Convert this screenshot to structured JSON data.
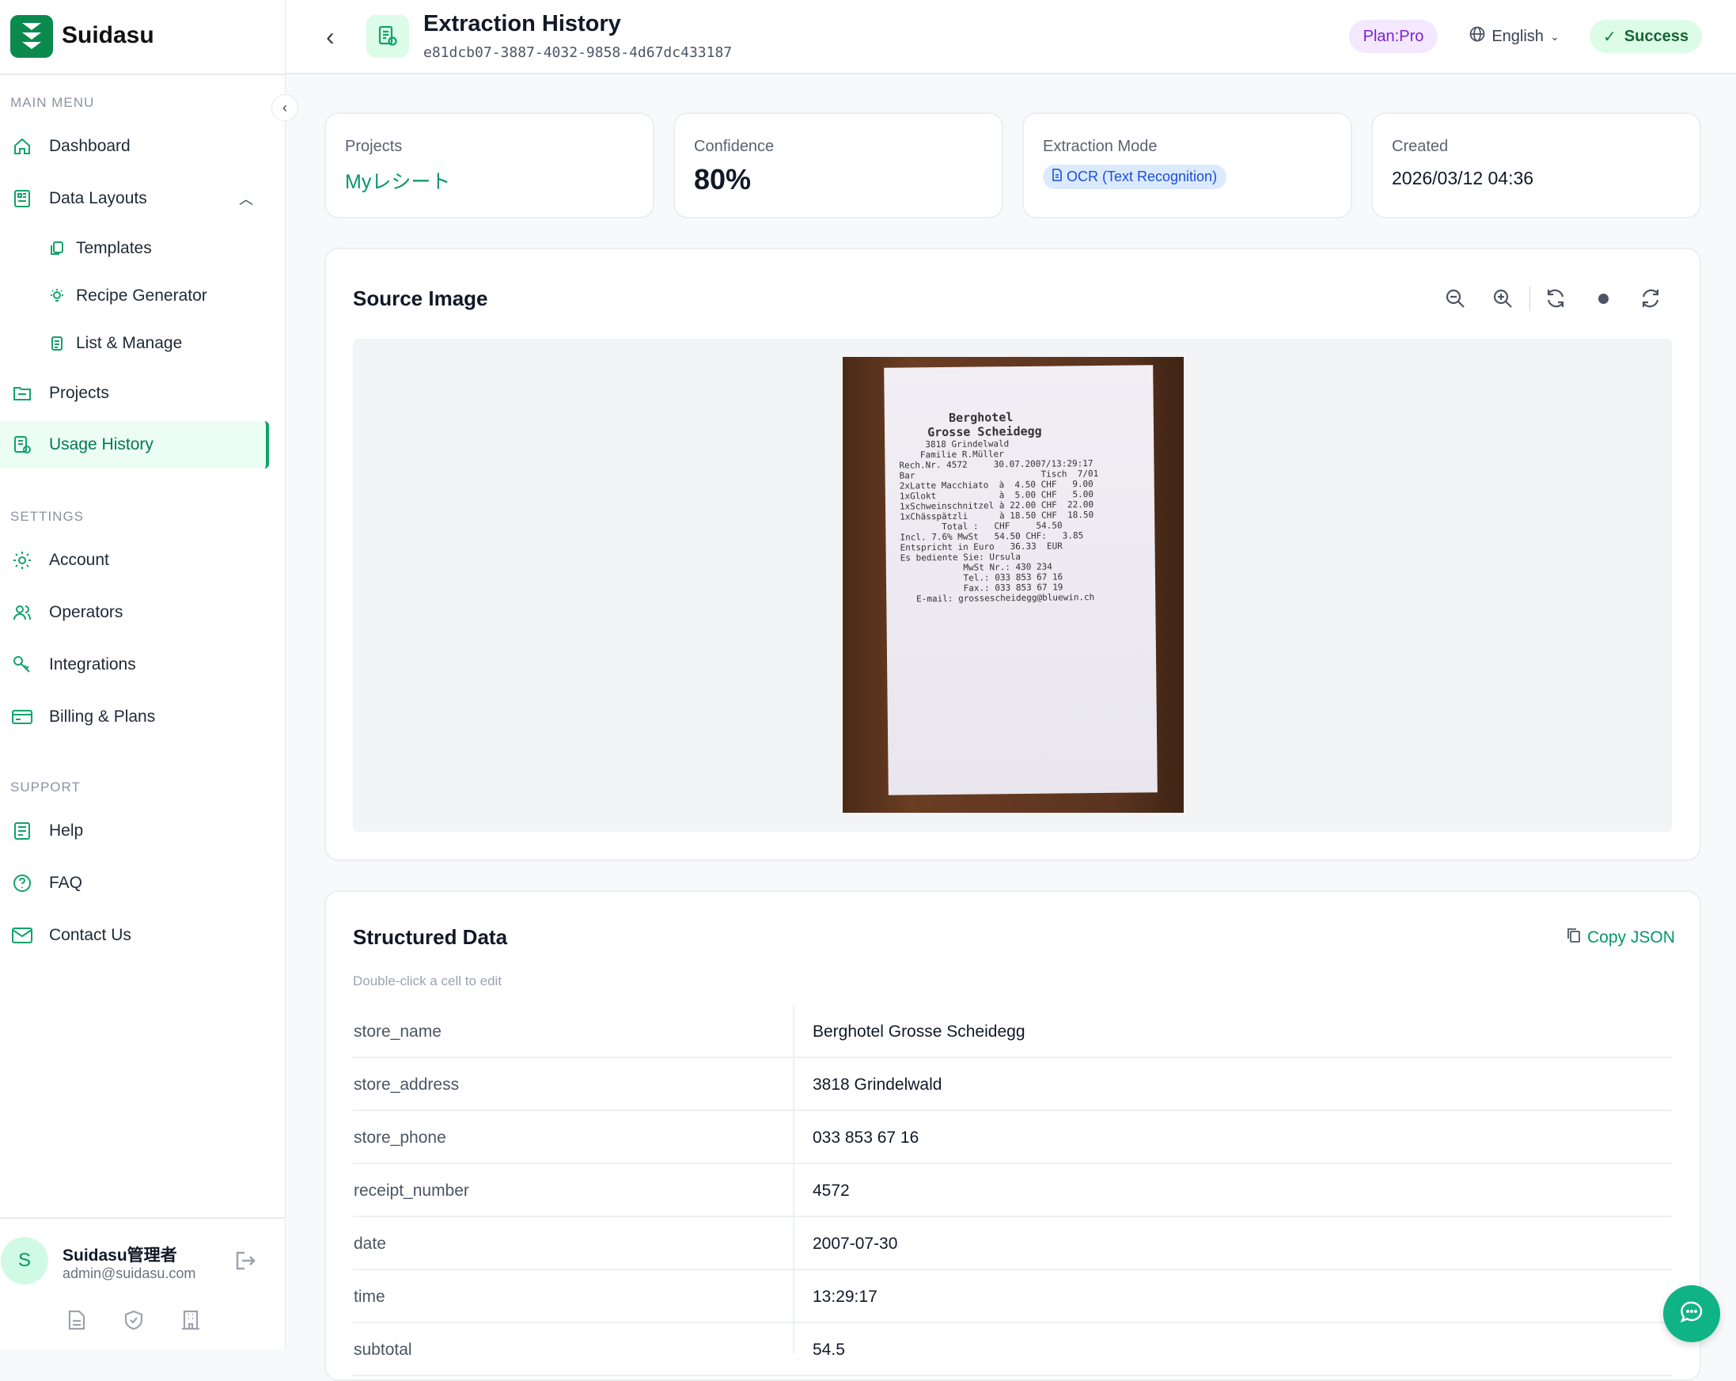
{
  "brand": {
    "name": "Suidasu",
    "color": "#0b8a4e"
  },
  "sidebar": {
    "main_menu": "MAIN MENU",
    "items": [
      {
        "label": "Dashboard",
        "icon": "home-icon"
      },
      {
        "label": "Data Layouts",
        "icon": "layout-icon",
        "expanded": true
      },
      {
        "label": "Templates",
        "icon": "copy-icon"
      },
      {
        "label": "Recipe Generator",
        "icon": "bulb-icon"
      },
      {
        "label": "List & Manage",
        "icon": "document-list-icon"
      },
      {
        "label": "Projects",
        "icon": "folder-icon"
      },
      {
        "label": "Usage History",
        "icon": "history-doc-icon",
        "active": true
      }
    ],
    "settings": "SETTINGS",
    "settings_items": [
      {
        "label": "Account",
        "icon": "gear-icon"
      },
      {
        "label": "Operators",
        "icon": "users-icon"
      },
      {
        "label": "Integrations",
        "icon": "key-icon"
      },
      {
        "label": "Billing & Plans",
        "icon": "credit-card-icon"
      }
    ],
    "support": "SUPPORT",
    "support_items": [
      {
        "label": "Help",
        "icon": "book-icon"
      },
      {
        "label": "FAQ",
        "icon": "question-icon"
      },
      {
        "label": "Contact Us",
        "icon": "mail-icon"
      }
    ],
    "user": {
      "initial": "S",
      "name": "Suidasu管理者",
      "email": "admin@suidasu.com"
    }
  },
  "header": {
    "title": "Extraction History",
    "id": "e81dcb07-3887-4032-9858-4d67dc433187",
    "plan": "Plan:Pro",
    "language": "English",
    "status": "Success"
  },
  "cards": {
    "projects": {
      "label": "Projects",
      "value": "Myレシート"
    },
    "confidence": {
      "label": "Confidence",
      "value": "80%"
    },
    "mode": {
      "label": "Extraction Mode",
      "value": "OCR (Text Recognition)"
    },
    "created": {
      "label": "Created",
      "value": "2026/03/12 04:36"
    }
  },
  "source": {
    "title": "Source Image",
    "receipt_lines": [
      "       Berghotel",
      "    Grosse Scheidegg",
      "     3818 Grindelwald",
      "    Familie R.Müller",
      "",
      "Rech.Nr. 4572     30.07.2007/13:29:17",
      "Bar                        Tisch  7/01",
      "",
      "2xLatte Macchiato  à  4.50 CHF   9.00",
      "1xGlokt            à  5.00 CHF   5.00",
      "1xSchweinschnitzel à 22.00 CHF  22.00",
      "1xChässpätzli      à 18.50 CHF  18.50",
      "",
      "        Total :   CHF     54.50",
      "",
      "Incl. 7.6% MwSt   54.50 CHF:   3.85",
      "",
      "Entspricht in Euro   36.33  EUR",
      "Es bediente Sie: Ursula",
      "",
      "            MwSt Nr.: 430 234",
      "            Tel.: 033 853 67 16",
      "            Fax.: 033 853 67 19",
      "   E-mail: grossescheidegg@bluewin.ch"
    ]
  },
  "structured": {
    "title": "Structured Data",
    "copy_label": "Copy JSON",
    "hint": "Double-click a cell to edit",
    "rows": [
      {
        "key": "store_name",
        "value": "Berghotel Grosse Scheidegg"
      },
      {
        "key": "store_address",
        "value": "3818 Grindelwald"
      },
      {
        "key": "store_phone",
        "value": "033 853 67 16"
      },
      {
        "key": "receipt_number",
        "value": "4572"
      },
      {
        "key": "date",
        "value": "2007-07-30"
      },
      {
        "key": "time",
        "value": "13:29:17"
      },
      {
        "key": "subtotal",
        "value": "54.5"
      }
    ]
  }
}
